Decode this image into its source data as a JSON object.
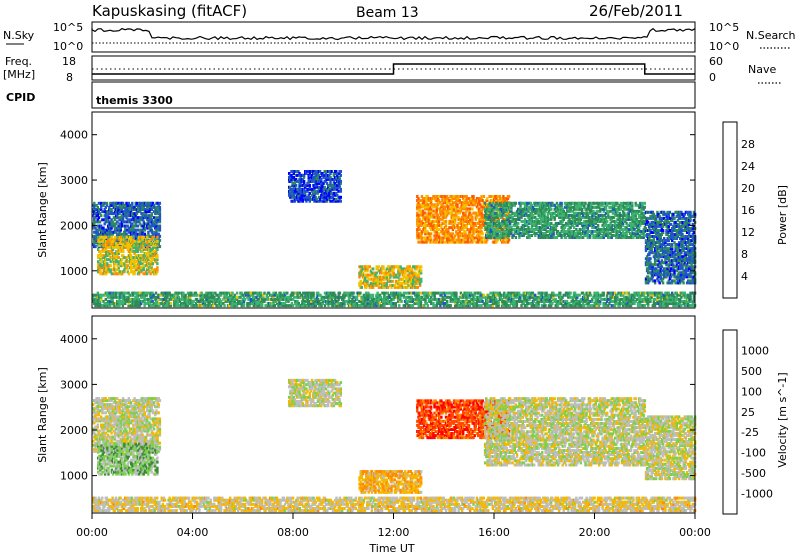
{
  "header": {
    "station": "Kapuskasing (fitACF)",
    "beam": "Beam 13",
    "date": "26/Feb/2011"
  },
  "panels": {
    "nsky_label": "N.Sky",
    "nsearch_label": "N.Search",
    "freq_label_line1": "Freq.",
    "freq_label_line2": "[MHz]",
    "nave_label": "Nave",
    "cpid_label": "CPID",
    "cpid_value": "themis 3300",
    "nsky_ticks": [
      "10^5",
      "10^0"
    ],
    "nsearch_ticks": [
      "10^5",
      "10^0"
    ],
    "freq_ticks": [
      "18",
      "8"
    ],
    "nave_ticks": [
      "60",
      "0"
    ]
  },
  "colors": {
    "power_scale": [
      "#0000ff",
      "#1f55c9",
      "#2e8b57",
      "#3cb371",
      "#f2c200",
      "#ff8c00",
      "#ff5a00",
      "#ff0000"
    ],
    "velocity_scale": [
      "#1e3fbf",
      "#2f5fb0",
      "#3a8a3a",
      "#7cd04c",
      "#bdbdbd",
      "#f5b800",
      "#ff8a00",
      "#ff4a00",
      "#ff0000"
    ],
    "ground_scatter": "#bdbdbd"
  },
  "chart_data": {
    "type": "heatmap",
    "xlabel": "Time UT",
    "x_ticks": [
      "00:00",
      "04:00",
      "08:00",
      "12:00",
      "16:00",
      "20:00",
      "00:00"
    ],
    "xlim_hours": [
      0,
      24
    ],
    "ylim_km": [
      180,
      4500
    ],
    "y_ticks": [
      "1000",
      "2000",
      "3000",
      "4000"
    ],
    "panels": [
      {
        "name": "power",
        "ylabel": "Slant Range [km]",
        "colorbar_label": "Power [dB]",
        "colorbar_ticks": [
          "4",
          "8",
          "12",
          "16",
          "20",
          "24",
          "28"
        ],
        "regions": [
          {
            "t0": 0.0,
            "t1": 2.7,
            "r0": 1500,
            "r1": 2500,
            "level": 1.2
          },
          {
            "t0": 0.2,
            "t1": 2.6,
            "r0": 900,
            "r1": 1750,
            "level": 3.8
          },
          {
            "t0": 7.8,
            "t1": 9.9,
            "r0": 2500,
            "r1": 3200,
            "level": 0.8
          },
          {
            "t0": 10.6,
            "t1": 13.1,
            "r0": 600,
            "r1": 1100,
            "level": 4.0
          },
          {
            "t0": 12.9,
            "t1": 16.6,
            "r0": 1600,
            "r1": 2650,
            "level": 5.0
          },
          {
            "t0": 15.6,
            "t1": 22.0,
            "r0": 1700,
            "r1": 2500,
            "level": 2.4
          },
          {
            "t0": 22.0,
            "t1": 24.0,
            "r0": 700,
            "r1": 2300,
            "level": 1.3
          },
          {
            "t0": 0.0,
            "t1": 24.0,
            "r0": 200,
            "r1": 520,
            "level": 2.5
          }
        ]
      },
      {
        "name": "velocity",
        "ylabel": "Slant Range [km]",
        "colorbar_label": "Velocity [m s^-1]",
        "colorbar_ticks": [
          "1000",
          "500",
          "100",
          "25",
          "-25",
          "-100",
          "-500",
          "-1000"
        ],
        "regions": [
          {
            "t0": 0.0,
            "t1": 2.7,
            "r0": 1500,
            "r1": 2700,
            "level": 4.0
          },
          {
            "t0": 0.2,
            "t1": 2.6,
            "r0": 1000,
            "r1": 1700,
            "level": 3.0
          },
          {
            "t0": 7.8,
            "t1": 9.9,
            "r0": 2500,
            "r1": 3100,
            "level": 4.0
          },
          {
            "t0": 10.6,
            "t1": 13.1,
            "r0": 600,
            "r1": 1100,
            "level": 5.2
          },
          {
            "t0": 12.9,
            "t1": 16.6,
            "r0": 1800,
            "r1": 2650,
            "level": 7.2
          },
          {
            "t0": 15.6,
            "t1": 22.0,
            "r0": 1200,
            "r1": 2700,
            "level": 4.0
          },
          {
            "t0": 22.0,
            "t1": 24.0,
            "r0": 900,
            "r1": 2300,
            "level": 4.0
          },
          {
            "t0": 0.0,
            "t1": 24.0,
            "r0": 200,
            "r1": 520,
            "level": 4.5
          }
        ]
      }
    ]
  }
}
